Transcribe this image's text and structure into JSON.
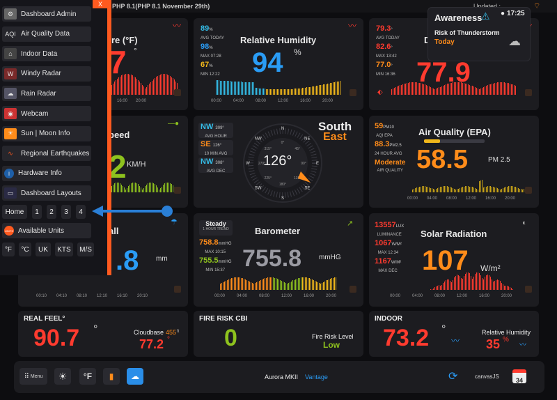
{
  "topbar": {
    "php": "PHP 8.1(PHP 8.1 November 29th)",
    "updated": "Updated :"
  },
  "colors": {
    "accent": "#ff5a1f",
    "orange": "#ff8c1a",
    "red": "#ff3b2f",
    "blue": "#2a9cf5",
    "green": "#8ec21e",
    "cyan": "#34bde8"
  },
  "sidebar": {
    "close": "X",
    "items": [
      {
        "label": "Dashboard Admin",
        "icon": "gear-icon"
      },
      {
        "label": "Air Quality Data",
        "icon": "aqi-icon",
        "icon_text": "AQI"
      },
      {
        "label": "Indoor Data",
        "icon": "house-icon"
      },
      {
        "label": "Windy Radar",
        "icon": "windy-icon"
      },
      {
        "label": "Rain Radar",
        "icon": "cloud-rain-icon"
      },
      {
        "label": "Webcam",
        "icon": "webcam-icon"
      },
      {
        "label": "Sun | Moon Info",
        "icon": "sun-icon"
      },
      {
        "label": "Regional Earthquakes",
        "icon": "earthquake-icon"
      },
      {
        "label": "Hardware Info",
        "icon": "info-icon"
      },
      {
        "label": "Dashboard Layouts",
        "icon": "layout-icon"
      }
    ],
    "layout_buttons": [
      "Home",
      "1",
      "2",
      "3",
      "4"
    ],
    "units_label": "Available Units",
    "units_icon_text": "UNITS",
    "units": [
      "°F",
      "°C",
      "UK",
      "KTS",
      "M/S"
    ]
  },
  "temperature": {
    "title_partial": "ure (°F)",
    "value_partial": "7",
    "unit": "°"
  },
  "humidity": {
    "title": "Relative Humidity",
    "value": "94",
    "unit": "%",
    "stats": [
      {
        "value": "89",
        "unit": "%",
        "caption": "AVG TODAY"
      },
      {
        "value": "98",
        "unit": "%",
        "caption": "MAX 07:28"
      },
      {
        "value": "67",
        "unit": "%",
        "caption": "MIN 12:22"
      }
    ],
    "axis": [
      "00:00",
      "04:00",
      "08:00",
      "12:00",
      "16:00",
      "20:00"
    ]
  },
  "dewpoint": {
    "title_partial": "D",
    "value_partial": "77.9",
    "stats": [
      {
        "value": "79.3",
        "unit": "°",
        "caption": "AVG TODAY"
      },
      {
        "value": "82.6",
        "unit": "°",
        "caption": "MAX 13:42"
      },
      {
        "value": "77.0",
        "unit": "°",
        "caption": "MIN 16:36"
      }
    ]
  },
  "awareness": {
    "title": "Awareness",
    "time": "17:25",
    "line1": "Risk of Thunderstorm",
    "line2": "Today"
  },
  "wind": {
    "title_partial": "peed",
    "value_partial": "2",
    "unit": "KM/H"
  },
  "direction": {
    "word1": "South",
    "word2": "East",
    "degrees": "126°",
    "stats": [
      {
        "dir": "NW",
        "deg": "309°",
        "caption": "AVG HOUR"
      },
      {
        "dir": "SE",
        "deg": "126°",
        "caption": "10 MIN AVG"
      },
      {
        "dir": "NW",
        "deg": "308°",
        "caption": "AVG DEC"
      }
    ],
    "cardinals": [
      "N",
      "NE",
      "E",
      "SE",
      "S",
      "SW",
      "W",
      "NW"
    ],
    "inner": [
      "0°",
      "45°",
      "90°",
      "135°",
      "180°",
      "225°",
      "270°",
      "315°"
    ]
  },
  "aqi": {
    "title": "Air Quality (EPA)",
    "value": "58.5",
    "unit": "PM 2.5",
    "level_pct": 0.26,
    "stats": [
      {
        "value": "59",
        "unit": "PM10",
        "caption": "AQI EPA"
      },
      {
        "value": "88.3",
        "unit": "PM2.5",
        "caption": "24 HOUR AVG"
      },
      {
        "value": "Moderate",
        "unit": "",
        "caption": "AIR QUALITY"
      }
    ],
    "axis": [
      "00:00",
      "04:00",
      "08:00",
      "12:00",
      "16:00",
      "20:00"
    ]
  },
  "rain": {
    "title_partial": "all",
    "value_partial": ".8",
    "unit": "mm",
    "axis": [
      "00:10",
      "04:10",
      "08:10",
      "12:10",
      "16:10",
      "20:10"
    ]
  },
  "barometer": {
    "title": "Barometer",
    "value": "755.8",
    "unit": "mmHG",
    "trend": "Steady",
    "trend_caption": "1 HOUR TREND",
    "stats": [
      {
        "value": "758.8",
        "unit": "mmHG",
        "caption": "MAX 10:15"
      },
      {
        "value": "755.5",
        "unit": "mmHG",
        "caption": "MIN 15:37"
      }
    ],
    "axis": [
      "00:00",
      "04:00",
      "08:00",
      "12:00",
      "16:00",
      "20:00"
    ]
  },
  "solar": {
    "title": "Solar Radiation",
    "value": "107",
    "unit": "W/m²",
    "stats": [
      {
        "value": "13557",
        "unit": "LUX",
        "caption": "LUMINANCE"
      },
      {
        "value": "1067",
        "unit": "W/M²",
        "caption": "MAX 12:34"
      },
      {
        "value": "1167",
        "unit": "W/M²",
        "caption": "MAX DEC"
      }
    ],
    "axis": [
      "00:00",
      "04:00",
      "08:00",
      "12:00",
      "16:00",
      "20:00"
    ]
  },
  "realfeel": {
    "title": "REAL FEEL°",
    "value": "90.7",
    "unit": "°",
    "cloudbase_label": "Cloudbase",
    "cloudbase_value": "455",
    "cloudbase_unit": "ft",
    "cloudbase_temp": "77.2",
    "cloudbase_temp_unit": "°"
  },
  "firerisk": {
    "title": "FIRE RISK CBI",
    "value": "0",
    "level_label": "Fire Risk Level",
    "level": "Low"
  },
  "indoor": {
    "title": "INDOOR",
    "value": "73.2",
    "unit": "°",
    "hum_label": "Relative Humidity",
    "hum_value": "35",
    "hum_unit": "%"
  },
  "bottombar": {
    "menu": "Menu",
    "unit": "°F",
    "station": "Aurora MKII",
    "station_model": "Vantage",
    "calendar_day": "34",
    "canvasjs": "canvasJS"
  }
}
